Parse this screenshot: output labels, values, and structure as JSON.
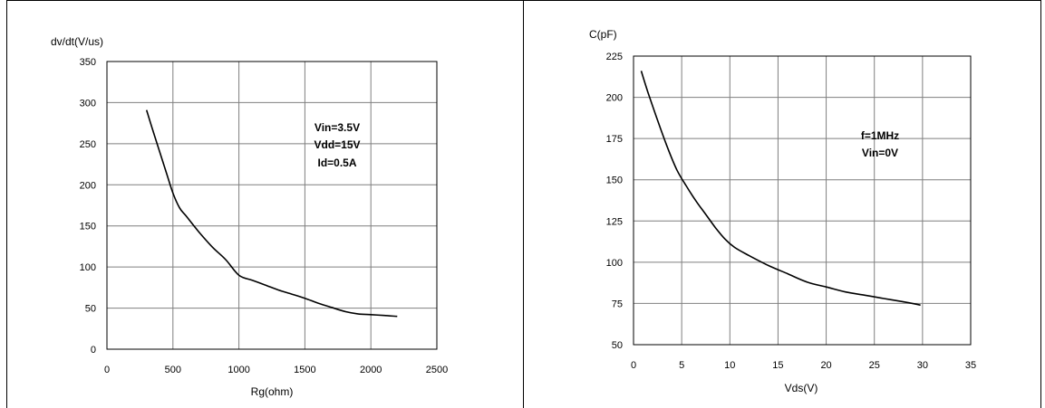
{
  "chart_data": [
    {
      "type": "line",
      "title": "",
      "xlabel": "Rg(ohm)",
      "ylabel": "dv/dt(V/us)",
      "xlim": [
        0,
        2500
      ],
      "ylim": [
        0,
        350
      ],
      "xticks": [
        "0",
        "500",
        "1000",
        "1500",
        "2000",
        "2500"
      ],
      "yticks": [
        "0",
        "50",
        "100",
        "150",
        "200",
        "250",
        "300",
        "350"
      ],
      "grid": true,
      "annotations": [
        "Vin=3.5V",
        "Vdd=15V",
        "Id=0.5A"
      ],
      "series": [
        {
          "x": [
            300,
            350,
            400,
            450,
            500,
            550,
            600,
            700,
            800,
            900,
            1000,
            1100,
            1200,
            1300,
            1400,
            1500,
            1600,
            1700,
            1800,
            1900,
            2000,
            2100,
            2200
          ],
          "y": [
            291,
            265,
            240,
            215,
            190,
            172,
            162,
            142,
            124,
            109,
            90,
            84,
            78,
            72,
            67,
            62,
            56,
            51,
            46,
            43,
            42,
            41,
            40
          ]
        }
      ]
    },
    {
      "type": "line",
      "title": "",
      "xlabel": "Vds(V)",
      "ylabel": "C(pF)",
      "xlim": [
        0,
        35
      ],
      "ylim": [
        50,
        225
      ],
      "xticks": [
        "0",
        "5",
        "10",
        "15",
        "20",
        "25",
        "30",
        "35"
      ],
      "yticks": [
        "50",
        "75",
        "100",
        "125",
        "150",
        "175",
        "200",
        "225"
      ],
      "grid": true,
      "annotations": [
        "f=1MHz",
        "Vin=0V"
      ],
      "series": [
        {
          "x": [
            0.8,
            1.5,
            2.5,
            3.5,
            4.5,
            5.5,
            6.5,
            7.5,
            8.5,
            9.5,
            10.5,
            12,
            14,
            16,
            18,
            20,
            22,
            24,
            26,
            28,
            29.8
          ],
          "y": [
            216,
            203,
            186,
            170,
            156,
            146,
            137,
            129,
            121,
            114,
            109,
            104,
            98,
            93,
            88,
            85,
            82,
            80,
            78,
            76,
            74
          ]
        }
      ]
    }
  ]
}
